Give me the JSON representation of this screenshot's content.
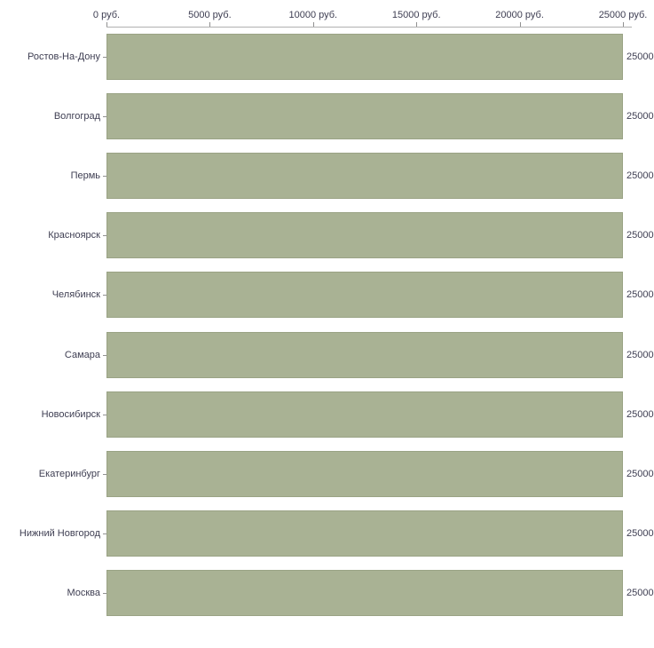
{
  "chart_data": {
    "type": "bar",
    "orientation": "horizontal",
    "title": "",
    "xlabel": "",
    "ylabel": "",
    "categories": [
      "Ростов-На-Дону",
      "Волгоград",
      "Пермь",
      "Красноярск",
      "Челябинск",
      "Самара",
      "Новосибирск",
      "Екатеринбург",
      "Нижний Новгород",
      "Москва"
    ],
    "values": [
      25000,
      25000,
      25000,
      25000,
      25000,
      25000,
      25000,
      25000,
      25000,
      25000
    ],
    "value_labels": [
      "25000",
      "25000",
      "25000",
      "25000",
      "25000",
      "25000",
      "25000",
      "25000",
      "25000",
      "25000"
    ],
    "x_tick_values": [
      0,
      5000,
      10000,
      15000,
      20000,
      25000
    ],
    "x_tick_labels": [
      "0 руб.",
      "5000 руб.",
      "10000 руб.",
      "15000 руб.",
      "20000 руб.",
      "25000 руб."
    ],
    "xlim": [
      0,
      25000
    ],
    "legend": null,
    "grid": false,
    "colors": {
      "bar_fill": "#a9b294",
      "bar_border": "#9aa385",
      "axis_line": "#b0b0b0",
      "tick_mark": "#909090",
      "text": "#3e3e52",
      "background": "#ffffff"
    }
  }
}
